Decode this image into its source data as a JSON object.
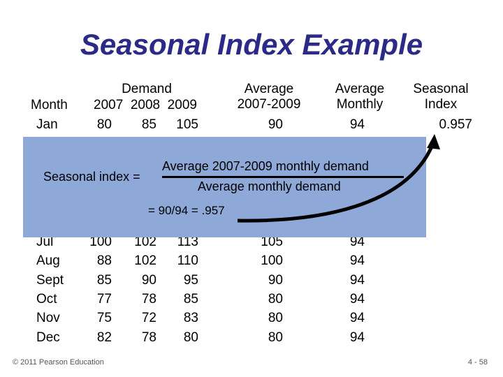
{
  "title": "Seasonal Index Example",
  "headers": {
    "month": "Month",
    "demand": "Demand",
    "years": "2007  2008  2009",
    "average_line1": "Average",
    "average_line2": "2007-2009",
    "avg_monthly_line1": "Average",
    "avg_monthly_line2": "Monthly",
    "seasonal_line1": "Seasonal",
    "seasonal_line2": "Index"
  },
  "rows": [
    {
      "month": "Jan",
      "y2007": "80",
      "y2008": "85",
      "y2009": "105",
      "avg": "90",
      "monthly": "94",
      "index": "0.957"
    },
    {
      "month": "Jul",
      "y2007": "100",
      "y2008": "102",
      "y2009": "113",
      "avg": "105",
      "monthly": "94",
      "index": ""
    },
    {
      "month": "Aug",
      "y2007": "88",
      "y2008": "102",
      "y2009": "110",
      "avg": "100",
      "monthly": "94",
      "index": ""
    },
    {
      "month": "Sept",
      "y2007": "85",
      "y2008": "90",
      "y2009": "95",
      "avg": "90",
      "monthly": "94",
      "index": ""
    },
    {
      "month": "Oct",
      "y2007": "77",
      "y2008": "78",
      "y2009": "85",
      "avg": "80",
      "monthly": "94",
      "index": ""
    },
    {
      "month": "Nov",
      "y2007": "75",
      "y2008": "72",
      "y2009": "83",
      "avg": "80",
      "monthly": "94",
      "index": ""
    },
    {
      "month": "Dec",
      "y2007": "82",
      "y2008": "78",
      "y2009": "80",
      "avg": "80",
      "monthly": "94",
      "index": ""
    }
  ],
  "formula": {
    "label": "Seasonal index =",
    "numerator": "Average 2007-2009 monthly demand",
    "denominator": "Average monthly demand",
    "result": "= 90/94 = .957"
  },
  "colors": {
    "title": "#2b2b87",
    "overlay": "#8ea8d8"
  },
  "footer": {
    "copyright": "© 2011 Pearson Education",
    "page": "4 - 58"
  }
}
